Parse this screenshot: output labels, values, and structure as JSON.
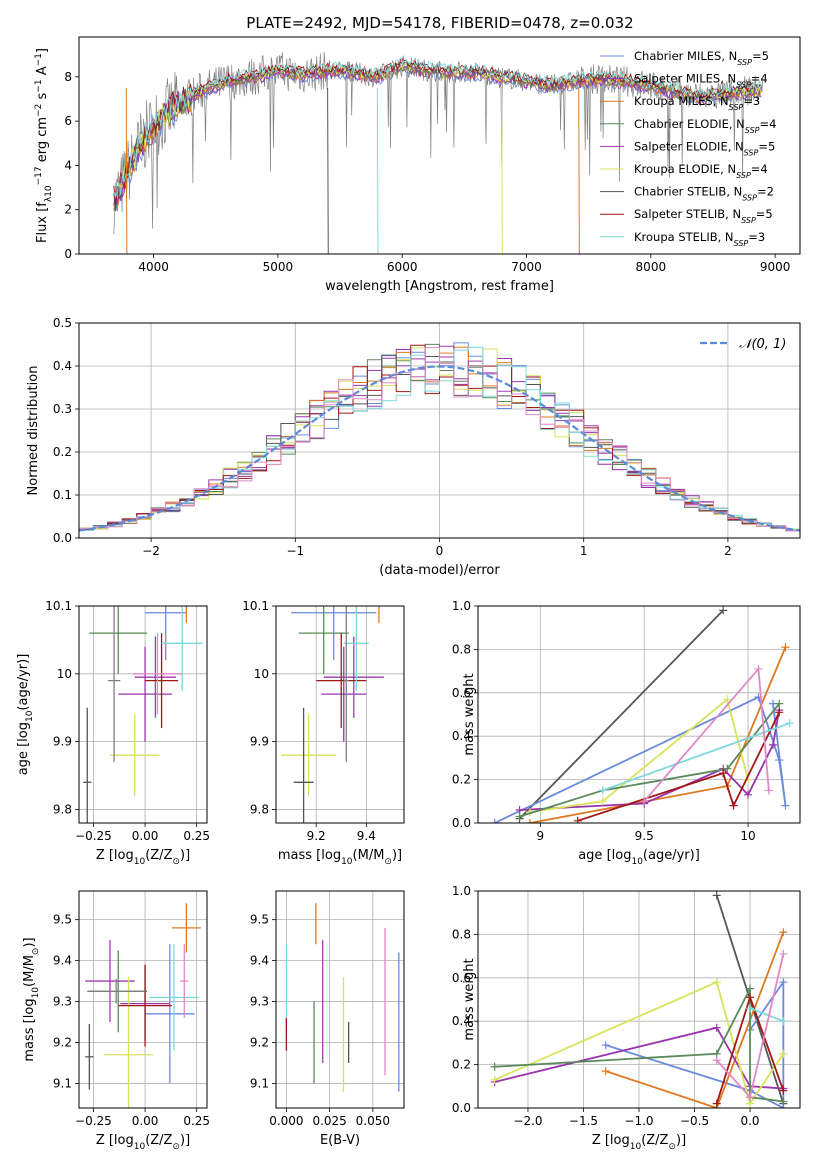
{
  "figure": {
    "title": "PLATE=2492, MJD=54178, FIBERID=0478, z=0.032"
  },
  "colors": {
    "Chabrier MILES": "#6a8bdc",
    "Salpeter MILES": "#9a34ad",
    "Kroupa MILES": "#dd7a21",
    "Chabrier ELODIE": "#5a8a5a",
    "Salpeter ELODIE": "#a13ab0",
    "Kroupa ELODIE": "#d7e35a",
    "Chabrier STELIB": "#555555",
    "Salpeter STELIB": "#a21616",
    "Kroupa STELIB": "#7fd9dc",
    "Pink": "#e088c8",
    "Normal": "#5b8bd8"
  },
  "chart_data": [
    {
      "id": "spectrum",
      "type": "line",
      "xlabel": "wavelength [Angstrom, rest frame]",
      "ylabel_parts": [
        "Flux [f",
        "λ",
        "10",
        "−17",
        " erg cm",
        "−2",
        " s",
        "−1",
        " A",
        "−1",
        "]"
      ],
      "xlim": [
        3400,
        9200
      ],
      "ylim": [
        0,
        9.8
      ],
      "xticks": [
        4000,
        5000,
        6000,
        7000,
        8000,
        9000
      ],
      "yticks": [
        0,
        2,
        4,
        6,
        8
      ],
      "legend_position": "upper-right",
      "legend": [
        {
          "model": "Chabrier MILES",
          "nssp": "5"
        },
        {
          "model": "Salpeter MILES",
          "nssp": "4"
        },
        {
          "model": "Kroupa MILES",
          "nssp": "3"
        },
        {
          "model": "Chabrier ELODIE",
          "nssp": "4"
        },
        {
          "model": "Salpeter ELODIE",
          "nssp": "5"
        },
        {
          "model": "Kroupa ELODIE",
          "nssp": "4"
        },
        {
          "model": "Chabrier STELIB",
          "nssp": "2"
        },
        {
          "model": "Salpeter STELIB",
          "nssp": "5"
        },
        {
          "model": "Kroupa STELIB",
          "nssp": "3"
        }
      ],
      "data_anchor": {
        "x": [
          3700,
          3800,
          3900,
          4000,
          4100,
          4200,
          4400,
          4600,
          4800,
          5000,
          5200,
          5400,
          5600,
          5800,
          6000,
          6200,
          6400,
          6600,
          6800,
          7000,
          7200,
          7400,
          7600,
          7800,
          8000,
          8200,
          8400,
          8600,
          8800
        ],
        "y": [
          2.5,
          3.8,
          5.0,
          5.8,
          6.3,
          6.8,
          7.4,
          7.8,
          8.0,
          8.3,
          8.1,
          8.3,
          8.2,
          8.0,
          8.5,
          8.3,
          8.2,
          8.2,
          8.0,
          7.8,
          7.6,
          7.8,
          7.9,
          7.8,
          7.6,
          7.3,
          7.1,
          7.2,
          7.4
        ]
      }
    },
    {
      "id": "residuals",
      "type": "histogram",
      "xlabel": "(data-model)/error",
      "ylabel": "Normed distribution",
      "xlim": [
        -2.5,
        2.5
      ],
      "ylim": [
        0,
        0.5
      ],
      "xticks": [
        -2,
        -1,
        0,
        1,
        2
      ],
      "yticks": [
        0,
        0.1,
        0.2,
        0.3,
        0.4,
        0.5
      ],
      "legend_position": "upper-right",
      "legend": [
        {
          "label_script": "𝒩",
          "label_rest": "(0, 1)",
          "color": "#5b8bd8"
        }
      ],
      "bin_width": 0.1,
      "normal": {
        "mu": 0,
        "sigma": 1
      }
    },
    {
      "id": "age_vs_Z",
      "type": "errorbar",
      "xlabel_parts": [
        "Z [log",
        "10",
        "(Z/Z",
        "⊙",
        ")]"
      ],
      "ylabel_parts": [
        "age  [log",
        "10",
        "(age/yr)]"
      ],
      "xlim": [
        -0.32,
        0.3
      ],
      "ylim": [
        9.78,
        10.1
      ],
      "xticks": [
        -0.25,
        0.0,
        0.25
      ],
      "xticklabels": [
        "−0.25",
        "0.00",
        "0.25"
      ],
      "yticks": [
        9.8,
        9.9,
        10.0,
        10.1
      ],
      "points": [
        {
          "model": "Chabrier MILES",
          "x": 0.1,
          "xerr": 0.1,
          "y": 10.09,
          "yerr": 0.07
        },
        {
          "model": "Salpeter MILES",
          "x": 0.0,
          "xerr": 0.13,
          "y": 9.97,
          "yerr": 0.07
        },
        {
          "model": "Kroupa MILES",
          "x": 0.2,
          "xerr": 0.07,
          "y": 10.135,
          "yerr": 0.06
        },
        {
          "model": "Chabrier ELODIE",
          "x": -0.13,
          "xerr": 0.14,
          "y": 10.06,
          "yerr": 0.06
        },
        {
          "model": "Salpeter ELODIE",
          "x": 0.05,
          "xerr": 0.1,
          "y": 9.995,
          "yerr": 0.06
        },
        {
          "model": "Kroupa ELODIE",
          "x": -0.05,
          "xerr": 0.12,
          "y": 9.88,
          "yerr": 0.06
        },
        {
          "model": "Chabrier STELIB",
          "x": -0.28,
          "xerr": 0.02,
          "y": 9.84,
          "yerr": 0.11
        },
        {
          "model": "Salpeter STELIB",
          "x": 0.08,
          "xerr": 0.08,
          "y": 9.99,
          "yerr": 0.07
        },
        {
          "model": "Kroupa STELIB",
          "x": 0.18,
          "xerr": 0.1,
          "y": 10.045,
          "yerr": 0.07
        },
        {
          "model": "Pink",
          "x": 0.06,
          "xerr": 0.12,
          "y": 10.0,
          "yerr": 0.06
        },
        {
          "model": "Gray",
          "x": -0.15,
          "xerr": 0.03,
          "y": 9.99,
          "yerr": 0.12
        }
      ]
    },
    {
      "id": "age_vs_mass",
      "type": "errorbar",
      "xlabel_parts": [
        "mass [log",
        "10",
        "(M/M",
        "⊙",
        ")]"
      ],
      "ylabel": "",
      "xlim": [
        9.04,
        9.55
      ],
      "ylim": [
        9.78,
        10.1
      ],
      "xticks": [
        9.2,
        9.4
      ],
      "yticks": [
        9.8,
        9.9,
        10.0,
        10.1
      ],
      "points": [
        {
          "model": "Chabrier MILES",
          "x": 9.27,
          "xerr": 0.17,
          "y": 10.09,
          "yerr": 0.07
        },
        {
          "model": "Salpeter MILES",
          "x": 9.31,
          "xerr": 0.09,
          "y": 9.97,
          "yerr": 0.07
        },
        {
          "model": "Kroupa MILES",
          "x": 9.45,
          "xerr": 0.1,
          "y": 10.135,
          "yerr": 0.06
        },
        {
          "model": "Chabrier ELODIE",
          "x": 9.23,
          "xerr": 0.1,
          "y": 10.06,
          "yerr": 0.06
        },
        {
          "model": "Salpeter ELODIE",
          "x": 9.35,
          "xerr": 0.12,
          "y": 9.995,
          "yerr": 0.06
        },
        {
          "model": "Kroupa ELODIE",
          "x": 9.17,
          "xerr": 0.11,
          "y": 9.88,
          "yerr": 0.06
        },
        {
          "model": "Chabrier STELIB",
          "x": 9.15,
          "xerr": 0.04,
          "y": 9.84,
          "yerr": 0.11
        },
        {
          "model": "Salpeter STELIB",
          "x": 9.3,
          "xerr": 0.1,
          "y": 9.99,
          "yerr": 0.07
        },
        {
          "model": "Kroupa STELIB",
          "x": 9.36,
          "xerr": 0.05,
          "y": 10.045,
          "yerr": 0.07
        },
        {
          "model": "Gray",
          "x": 9.32,
          "xerr": 0.01,
          "y": 9.99,
          "yerr": 0.12
        }
      ]
    },
    {
      "id": "weight_vs_age",
      "type": "line",
      "xlabel_parts": [
        "age  [log",
        "10",
        "(age/yr)]"
      ],
      "ylabel": "mass weight",
      "xlim": [
        8.7,
        10.25
      ],
      "ylim": [
        0,
        1.0
      ],
      "xticks": [
        9.0,
        9.5,
        10.0
      ],
      "yticks": [
        0,
        0.2,
        0.4,
        0.6,
        0.8,
        1.0
      ],
      "series": [
        {
          "model": "Chabrier STELIB",
          "x": [
            8.9,
            9.88
          ],
          "y": [
            0.02,
            0.98
          ]
        },
        {
          "model": "Chabrier MILES",
          "x": [
            8.78,
            10.05,
            10.15,
            10.18,
            10.12
          ],
          "y": [
            0.0,
            0.58,
            0.29,
            0.08,
            0.55
          ]
        },
        {
          "model": "Kroupa MILES",
          "x": [
            8.95,
            9.9,
            10.18
          ],
          "y": [
            0.0,
            0.17,
            0.81
          ]
        },
        {
          "model": "Salpeter MILES",
          "x": [
            8.9,
            9.5,
            9.88,
            10.0,
            10.12,
            10.15
          ],
          "y": [
            0.06,
            0.09,
            0.25,
            0.13,
            0.36,
            0.52
          ]
        },
        {
          "model": "Kroupa ELODIE",
          "x": [
            8.95,
            9.3,
            9.9,
            10.0
          ],
          "y": [
            0.05,
            0.1,
            0.57,
            0.2
          ]
        },
        {
          "model": "Chabrier ELODIE",
          "x": [
            8.9,
            9.3,
            9.9,
            10.15
          ],
          "y": [
            0.03,
            0.15,
            0.25,
            0.55
          ]
        },
        {
          "model": "Salpeter STELIB",
          "x": [
            9.18,
            9.88,
            9.93,
            10.15
          ],
          "y": [
            0.01,
            0.23,
            0.08,
            0.51
          ]
        },
        {
          "model": "Kroupa STELIB",
          "x": [
            9.3,
            10.2
          ],
          "y": [
            0.15,
            0.46
          ]
        },
        {
          "model": "Pink",
          "x": [
            9.5,
            10.05,
            10.1
          ],
          "y": [
            0.1,
            0.71,
            0.15
          ]
        }
      ]
    },
    {
      "id": "mass_vs_Z",
      "type": "errorbar",
      "xlabel_parts": [
        "Z [log",
        "10",
        "(Z/Z",
        "⊙",
        ")]"
      ],
      "ylabel_parts": [
        "mass [log",
        "10",
        "(M/M",
        "⊙",
        ")]"
      ],
      "xlim": [
        -0.32,
        0.3
      ],
      "ylim": [
        9.04,
        9.57
      ],
      "xticks": [
        -0.25,
        0.0,
        0.25
      ],
      "xticklabels": [
        "−0.25",
        "0.00",
        "0.25"
      ],
      "yticks": [
        9.1,
        9.2,
        9.3,
        9.4,
        9.5
      ],
      "points": [
        {
          "model": "Chabrier MILES",
          "x": 0.12,
          "xerr": 0.12,
          "y": 9.27,
          "yerr": 0.17
        },
        {
          "model": "Salpeter MILES",
          "x": 0.0,
          "xerr": 0.12,
          "y": 9.295,
          "yerr": 0.09
        },
        {
          "model": "Kroupa MILES",
          "x": 0.2,
          "xerr": 0.07,
          "y": 9.48,
          "yerr": 0.06
        },
        {
          "model": "Chabrier ELODIE",
          "x": -0.13,
          "xerr": 0.14,
          "y": 9.325,
          "yerr": 0.1
        },
        {
          "model": "Salpeter ELODIE",
          "x": -0.17,
          "xerr": 0.12,
          "y": 9.35,
          "yerr": 0.1
        },
        {
          "model": "Kroupa ELODIE",
          "x": -0.08,
          "xerr": 0.12,
          "y": 9.17,
          "yerr": 0.19
        },
        {
          "model": "Chabrier STELIB",
          "x": -0.27,
          "xerr": 0.02,
          "y": 9.165,
          "yerr": 0.08
        },
        {
          "model": "Salpeter STELIB",
          "x": 0.0,
          "xerr": 0.13,
          "y": 9.29,
          "yerr": 0.1
        },
        {
          "model": "Kroupa STELIB",
          "x": 0.14,
          "xerr": 0.12,
          "y": 9.31,
          "yerr": 0.13
        },
        {
          "model": "Pink",
          "x": 0.19,
          "xerr": 0.02,
          "y": 9.35,
          "yerr": 0.09
        },
        {
          "model": "Gray",
          "x": -0.14,
          "xerr": 0.14,
          "y": 9.325,
          "yerr": 0.03
        }
      ]
    },
    {
      "id": "mass_vs_EBV",
      "type": "errorbar",
      "xlabel": "E(B-V)",
      "ylabel": "",
      "xlim": [
        -0.006,
        0.068
      ],
      "ylim": [
        9.04,
        9.57
      ],
      "xticks": [
        0.0,
        0.025,
        0.05
      ],
      "xticklabels": [
        "0.000",
        "0.025",
        "0.050"
      ],
      "yticks": [
        9.1,
        9.2,
        9.3,
        9.4,
        9.5
      ],
      "points": [
        {
          "model": "Kroupa STELIB",
          "x": 0.0,
          "xerr": 0,
          "y": 9.33,
          "yerr": 0.11
        },
        {
          "model": "Salpeter STELIB",
          "x": 0.0,
          "xerr": 0,
          "y": 9.22,
          "yerr": 0.04
        },
        {
          "model": "Chabrier ELODIE",
          "x": 0.016,
          "xerr": 0,
          "y": 9.2,
          "yerr": 0.1
        },
        {
          "model": "Kroupa MILES",
          "x": 0.017,
          "xerr": 0,
          "y": 9.49,
          "yerr": 0.05
        },
        {
          "model": "Salpeter ELODIE",
          "x": 0.021,
          "xerr": 0,
          "y": 9.3,
          "yerr": 0.15
        },
        {
          "model": "Kroupa ELODIE",
          "x": 0.033,
          "xerr": 0,
          "y": 9.22,
          "yerr": 0.14
        },
        {
          "model": "Chabrier STELIB",
          "x": 0.036,
          "xerr": 0,
          "y": 9.2,
          "yerr": 0.05
        },
        {
          "model": "Pink",
          "x": 0.057,
          "xerr": 0,
          "y": 9.3,
          "yerr": 0.18
        },
        {
          "model": "Chabrier MILES",
          "x": 0.065,
          "xerr": 0,
          "y": 9.25,
          "yerr": 0.17
        }
      ]
    },
    {
      "id": "weight_vs_Z",
      "type": "line",
      "xlabel_parts": [
        "Z [log",
        "10",
        "(Z/Z",
        "⊙",
        ")]"
      ],
      "ylabel": "mass weight",
      "xlim": [
        -2.45,
        0.45
      ],
      "ylim": [
        0,
        1.0
      ],
      "xticks": [
        -2.0,
        -1.5,
        -1.0,
        -0.5,
        0.0
      ],
      "xticklabels": [
        "−2.0",
        "−1.5",
        "−1.0",
        "−0.5",
        "0.0"
      ],
      "yticks": [
        0,
        0.2,
        0.4,
        0.6,
        0.8,
        1.0
      ],
      "series": [
        {
          "model": "Chabrier STELIB",
          "x": [
            -0.3,
            0.3
          ],
          "y": [
            0.98,
            0.02
          ]
        },
        {
          "model": "Chabrier MILES",
          "x": [
            -1.3,
            0.0,
            0.3,
            0.3,
            0.0
          ],
          "y": [
            0.29,
            0.08,
            0.0,
            0.58,
            0.36
          ]
        },
        {
          "model": "Kroupa MILES",
          "x": [
            -1.3,
            -0.3,
            0.3
          ],
          "y": [
            0.17,
            0.0,
            0.81
          ]
        },
        {
          "model": "Salpeter MILES",
          "x": [
            -2.3,
            -0.3,
            0.0,
            0.3
          ],
          "y": [
            0.12,
            0.37,
            0.1,
            0.09
          ]
        },
        {
          "model": "Kroupa ELODIE",
          "x": [
            -2.3,
            -0.3,
            0.0,
            0.3
          ],
          "y": [
            0.13,
            0.58,
            0.02,
            0.25
          ]
        },
        {
          "model": "Chabrier ELODIE",
          "x": [
            -2.3,
            -0.3,
            0.0,
            0.0,
            0.3
          ],
          "y": [
            0.19,
            0.25,
            0.55,
            0.05,
            0.03
          ]
        },
        {
          "model": "Salpeter STELIB",
          "x": [
            -0.3,
            0.0,
            0.3
          ],
          "y": [
            0.02,
            0.51,
            0.08
          ]
        },
        {
          "model": "Kroupa STELIB",
          "x": [
            0.0,
            0.3
          ],
          "y": [
            0.46,
            0.4
          ]
        },
        {
          "model": "Pink",
          "x": [
            -0.3,
            0.0,
            0.3
          ],
          "y": [
            0.22,
            0.05,
            0.71
          ]
        }
      ]
    }
  ]
}
